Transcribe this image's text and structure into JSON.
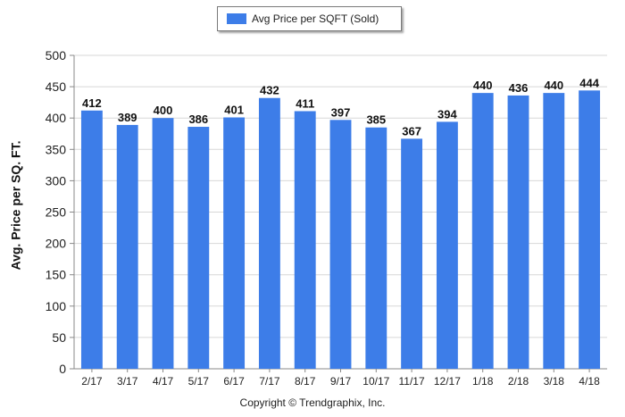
{
  "chart_data": {
    "type": "bar",
    "title": "",
    "xlabel": "",
    "ylabel": "Avg. Price per SQ. FT.",
    "ylim": [
      0,
      500
    ],
    "yticks": [
      0,
      50,
      100,
      150,
      200,
      250,
      300,
      350,
      400,
      450,
      500
    ],
    "grid": true,
    "legend_position": "top-center",
    "categories": [
      "2/17",
      "3/17",
      "4/17",
      "5/17",
      "6/17",
      "7/17",
      "8/17",
      "9/17",
      "10/17",
      "11/17",
      "12/17",
      "1/18",
      "2/18",
      "3/18",
      "4/18"
    ],
    "series": [
      {
        "name": "Avg Price per SQFT (Sold)",
        "color": "#3d7de8",
        "values": [
          412,
          389,
          400,
          386,
          401,
          432,
          411,
          397,
          385,
          367,
          394,
          440,
          436,
          440,
          444
        ]
      }
    ],
    "data_labels": true
  },
  "footer": {
    "copyright": "Copyright © Trendgraphix, Inc."
  }
}
